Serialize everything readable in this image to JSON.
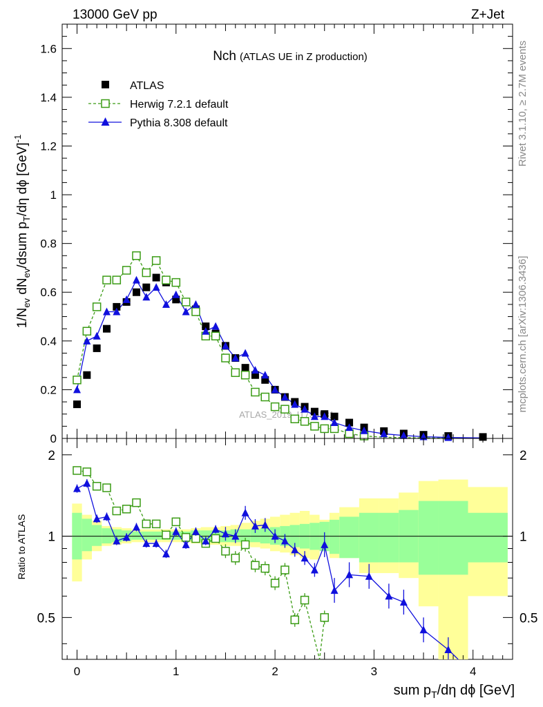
{
  "header": {
    "left": "13000 GeV pp",
    "right": "Z+Jet"
  },
  "side_text": {
    "rivet": "Rivet 3.1.10, ≥ 2.7M events",
    "mcplots": "mcplots.cern.ch [arXiv:1306.3436]"
  },
  "watermark": "ATLAS_2019_I1736531",
  "chart_data": {
    "type": "scatter",
    "title": "Nch",
    "subtitle": "(ATLAS UE in Z production)",
    "xlabel": "sum p_T/dη dϕ [GeV]",
    "ylabel": "1/N_ev dN_ev/dsum p_T/dη dϕ [GeV]^-1",
    "ratio_ylabel": "Ratio to ATLAS",
    "xlim": [
      -0.15,
      4.4
    ],
    "ylim": [
      0,
      1.7
    ],
    "ratio_ylim": [
      0.35,
      2.3
    ],
    "x_ticks": [
      0,
      1,
      2,
      3,
      4
    ],
    "y_ticks": [
      0.2,
      0.4,
      0.6,
      0.8,
      1,
      1.2,
      1.4,
      1.6
    ],
    "y_ticks_shown": [
      0,
      0.2,
      0.4,
      0.6,
      0.8,
      1,
      1.2,
      1.4,
      1.6
    ],
    "ratio_ticks": [
      0.5,
      1,
      2
    ],
    "legend_position": "top-left",
    "colors": {
      "atlas": "#000000",
      "herwig": "#3a9b14",
      "pythia": "#1010dd",
      "band_inner": "#99ff99",
      "band_outer": "#ffff99"
    },
    "series": [
      {
        "name": "ATLAS",
        "marker": "filled-square",
        "x": [
          0.0,
          0.1,
          0.2,
          0.3,
          0.4,
          0.5,
          0.6,
          0.7,
          0.8,
          0.9,
          1.0,
          1.1,
          1.2,
          1.3,
          1.4,
          1.5,
          1.6,
          1.7,
          1.8,
          1.9,
          2.0,
          2.1,
          2.2,
          2.3,
          2.4,
          2.5,
          2.6,
          2.75,
          2.9,
          3.1,
          3.3,
          3.5,
          3.75,
          4.1
        ],
        "y": [
          0.14,
          0.26,
          0.37,
          0.45,
          0.54,
          0.56,
          0.6,
          0.62,
          0.66,
          0.64,
          0.57,
          0.56,
          0.53,
          0.46,
          0.43,
          0.38,
          0.33,
          0.29,
          0.26,
          0.24,
          0.2,
          0.17,
          0.15,
          0.13,
          0.11,
          0.1,
          0.09,
          0.065,
          0.045,
          0.03,
          0.02,
          0.015,
          0.01,
          0.006
        ]
      },
      {
        "name": "Herwig 7.2.1 default",
        "marker": "open-square",
        "x": [
          0.0,
          0.1,
          0.2,
          0.3,
          0.4,
          0.5,
          0.6,
          0.7,
          0.8,
          0.9,
          1.0,
          1.1,
          1.2,
          1.3,
          1.4,
          1.5,
          1.6,
          1.7,
          1.8,
          1.9,
          2.0,
          2.1,
          2.2,
          2.3,
          2.4,
          2.5,
          2.6,
          2.75,
          2.9,
          3.1,
          3.3,
          3.5,
          3.75,
          4.1
        ],
        "y": [
          0.24,
          0.44,
          0.54,
          0.65,
          0.65,
          0.69,
          0.75,
          0.68,
          0.73,
          0.65,
          0.64,
          0.56,
          0.52,
          0.42,
          0.42,
          0.33,
          0.27,
          0.26,
          0.19,
          0.17,
          0.13,
          0.12,
          0.08,
          0.07,
          0.05,
          0.04,
          0.04,
          0.02,
          0.01,
          0.005,
          0.003,
          0.002,
          0.001,
          0.0005
        ]
      },
      {
        "name": "Pythia 8.308 default",
        "marker": "filled-triangle",
        "x": [
          0.0,
          0.1,
          0.2,
          0.3,
          0.4,
          0.5,
          0.6,
          0.7,
          0.8,
          0.9,
          1.0,
          1.1,
          1.2,
          1.3,
          1.4,
          1.5,
          1.6,
          1.7,
          1.8,
          1.9,
          2.0,
          2.1,
          2.2,
          2.3,
          2.4,
          2.5,
          2.6,
          2.75,
          2.9,
          3.1,
          3.3,
          3.5,
          3.75,
          4.1
        ],
        "y": [
          0.2,
          0.4,
          0.42,
          0.52,
          0.52,
          0.57,
          0.65,
          0.58,
          0.62,
          0.55,
          0.59,
          0.52,
          0.55,
          0.44,
          0.46,
          0.38,
          0.33,
          0.35,
          0.28,
          0.26,
          0.2,
          0.17,
          0.14,
          0.12,
          0.09,
          0.09,
          0.065,
          0.045,
          0.032,
          0.019,
          0.012,
          0.007,
          0.004,
          0.002
        ]
      }
    ],
    "ratio": {
      "herwig": {
        "x": [
          0.0,
          0.1,
          0.2,
          0.3,
          0.4,
          0.5,
          0.6,
          0.7,
          0.8,
          0.9,
          1.0,
          1.1,
          1.2,
          1.3,
          1.4,
          1.5,
          1.6,
          1.7,
          1.8,
          1.9,
          2.0,
          2.1,
          2.2,
          2.3,
          2.45,
          2.5
        ],
        "y": [
          1.75,
          1.73,
          1.53,
          1.51,
          1.24,
          1.26,
          1.33,
          1.11,
          1.11,
          1.01,
          1.13,
          0.99,
          0.98,
          0.94,
          0.98,
          0.88,
          0.83,
          0.93,
          0.78,
          0.76,
          0.67,
          0.75,
          0.49,
          0.58,
          0.35,
          0.5
        ]
      },
      "pythia": {
        "x": [
          0.0,
          0.1,
          0.2,
          0.3,
          0.4,
          0.5,
          0.6,
          0.7,
          0.8,
          0.9,
          1.0,
          1.1,
          1.2,
          1.3,
          1.4,
          1.5,
          1.6,
          1.7,
          1.8,
          1.9,
          2.0,
          2.1,
          2.2,
          2.3,
          2.4,
          2.5,
          2.6,
          2.75,
          2.95,
          3.15,
          3.3,
          3.5,
          3.75,
          3.85
        ],
        "y": [
          1.5,
          1.57,
          1.16,
          1.18,
          0.96,
          0.99,
          1.08,
          0.94,
          0.94,
          0.86,
          1.04,
          0.93,
          1.04,
          0.96,
          1.06,
          1.02,
          1.0,
          1.22,
          1.09,
          1.1,
          1.0,
          0.96,
          0.89,
          0.83,
          0.75,
          0.93,
          0.63,
          0.72,
          0.71,
          0.6,
          0.57,
          0.45,
          0.38,
          0.3
        ]
      },
      "bands": {
        "edges": [
          -0.05,
          0.05,
          0.15,
          0.25,
          0.35,
          0.45,
          0.55,
          0.65,
          0.75,
          0.85,
          0.95,
          1.05,
          1.15,
          1.25,
          1.35,
          1.45,
          1.55,
          1.65,
          1.75,
          1.85,
          1.95,
          2.05,
          2.15,
          2.25,
          2.35,
          2.45,
          2.55,
          2.65,
          2.85,
          3.05,
          3.25,
          3.45,
          3.65,
          3.95,
          4.35
        ],
        "inner_lo": [
          0.82,
          0.88,
          0.92,
          0.94,
          0.95,
          0.96,
          0.97,
          0.97,
          0.97,
          0.97,
          0.97,
          0.97,
          0.96,
          0.95,
          0.95,
          0.95,
          0.95,
          0.95,
          0.95,
          0.94,
          0.93,
          0.92,
          0.91,
          0.9,
          0.89,
          0.88,
          0.86,
          0.83,
          0.8,
          0.8,
          0.8,
          0.72,
          0.72,
          0.8
        ],
        "inner_hi": [
          1.22,
          1.16,
          1.1,
          1.07,
          1.06,
          1.05,
          1.04,
          1.04,
          1.04,
          1.04,
          1.04,
          1.04,
          1.05,
          1.05,
          1.05,
          1.05,
          1.06,
          1.06,
          1.06,
          1.07,
          1.08,
          1.09,
          1.1,
          1.11,
          1.12,
          1.13,
          1.15,
          1.18,
          1.22,
          1.22,
          1.25,
          1.35,
          1.35,
          1.22
        ],
        "outer_lo": [
          0.68,
          0.82,
          0.88,
          0.92,
          0.93,
          0.94,
          0.95,
          0.95,
          0.95,
          0.95,
          0.95,
          0.95,
          0.94,
          0.93,
          0.93,
          0.92,
          0.92,
          0.92,
          0.91,
          0.9,
          0.88,
          0.87,
          0.85,
          0.83,
          0.82,
          0.9,
          0.83,
          0.83,
          0.73,
          0.73,
          0.7,
          0.55,
          0.35,
          0.6,
          0.6
        ],
        "outer_hi": [
          1.32,
          1.2,
          1.14,
          1.09,
          1.08,
          1.07,
          1.06,
          1.06,
          1.06,
          1.06,
          1.06,
          1.06,
          1.07,
          1.08,
          1.08,
          1.09,
          1.1,
          1.12,
          1.14,
          1.16,
          1.18,
          1.2,
          1.22,
          1.24,
          1.2,
          1.15,
          1.22,
          1.28,
          1.38,
          1.38,
          1.45,
          1.6,
          1.62,
          1.52,
          1.52
        ]
      }
    }
  }
}
